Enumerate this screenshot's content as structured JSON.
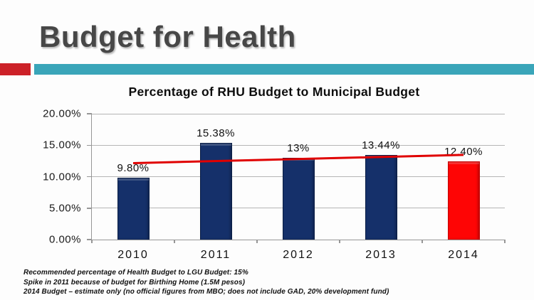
{
  "slide": {
    "title": "Budget for Health",
    "accent_red_color": "#CC2128",
    "accent_teal_color": "#3AA5B9"
  },
  "chart_data": {
    "type": "bar",
    "title": "Percentage of RHU Budget to Municipal Budget",
    "xlabel": "",
    "ylabel": "",
    "categories": [
      "2010",
      "2011",
      "2012",
      "2013",
      "2014"
    ],
    "values": [
      9.8,
      15.38,
      13,
      13.44,
      12.4
    ],
    "value_labels": [
      "9.80%",
      "15.38%",
      "13%",
      "13.44%",
      "12.40%"
    ],
    "bar_colors": [
      "#15306A",
      "#15306A",
      "#15306A",
      "#15306A",
      "#FE0505"
    ],
    "bar_border_colors": [
      "#0A1D45",
      "#0A1D45",
      "#0A1D45",
      "#0A1D45",
      "#C40000"
    ],
    "ylim": [
      0,
      20
    ],
    "yticks": [
      {
        "value": 20,
        "label": "20.00%"
      },
      {
        "value": 15,
        "label": "15.00%"
      },
      {
        "value": 10,
        "label": "10.00%"
      },
      {
        "value": 5,
        "label": "5.00%"
      },
      {
        "value": 0,
        "label": "0.00%"
      }
    ],
    "grid": true,
    "legend": "none",
    "trendline": {
      "start_value": 12.15,
      "end_value": 13.46,
      "color": "#E00000",
      "width": 3
    }
  },
  "footnotes": [
    "Recommended percentage of Health Budget to LGU Budget: 15%",
    "Spike in 2011 because of budget for Birthing Home (1.5M pesos)",
    "2014 Budget – estimate only (no official figures from MBO; does not include GAD, 20% development fund)"
  ]
}
